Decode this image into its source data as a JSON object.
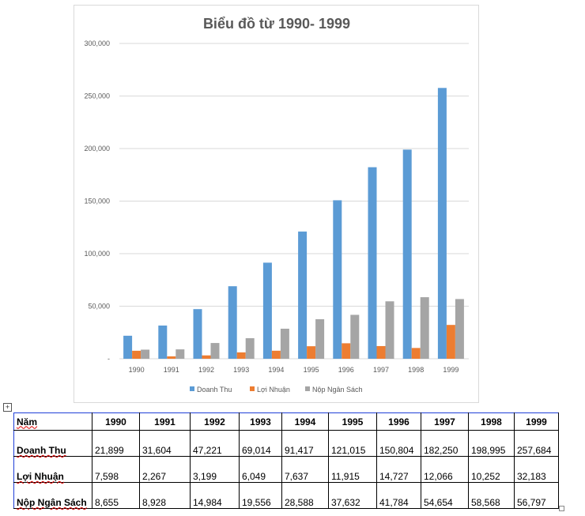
{
  "chart_data": {
    "type": "bar",
    "title": "Biểu đồ từ 1990- 1999",
    "categories": [
      "1990",
      "1991",
      "1992",
      "1993",
      "1994",
      "1995",
      "1996",
      "1997",
      "1998",
      "1999"
    ],
    "series": [
      {
        "name": "Doanh Thu",
        "color": "#5b9bd5",
        "values": [
          21899,
          31604,
          47221,
          69014,
          91417,
          121015,
          150804,
          182250,
          198995,
          257684
        ]
      },
      {
        "name": "Lợi Nhuận",
        "color": "#ed7d31",
        "values": [
          7598,
          2267,
          3199,
          6049,
          7637,
          11915,
          14727,
          12066,
          10252,
          32183
        ]
      },
      {
        "name": "Nộp Ngân Sách",
        "color": "#a5a5a5",
        "values": [
          8655,
          8928,
          14984,
          19556,
          28588,
          37632,
          41784,
          54654,
          58568,
          56797
        ]
      }
    ],
    "ylim": [
      0,
      300000
    ],
    "yticks": [
      "-",
      "50,000",
      "100,000",
      "150,000",
      "200,000",
      "250,000",
      "300,000"
    ],
    "grid": true,
    "legend": "bottom",
    "xlabel": "",
    "ylabel": ""
  },
  "table": {
    "header": [
      "Năm",
      "1990",
      "1991",
      "1992",
      "1993",
      "1994",
      "1995",
      "1996",
      "1997",
      "1998",
      "1999"
    ],
    "rows": [
      [
        "Doanh Thu",
        "21,899",
        "31,604",
        "47,221",
        "69,014",
        "91,417",
        "121,015",
        "150,804",
        "182,250",
        "198,995",
        "257,684"
      ],
      [
        "Lợi Nhuận",
        "7,598",
        "2,267",
        "3,199",
        "6,049",
        "7,637",
        "11,915",
        "14,727",
        "12,066",
        "10,252",
        "32,183"
      ],
      [
        "Nộp Ngân Sách",
        "8,655",
        "8,928",
        "14,984",
        "19,556",
        "28,588",
        "37,632",
        "41,784",
        "54,654",
        "58,568",
        "56,797"
      ]
    ]
  },
  "move_handle_icon": "+"
}
